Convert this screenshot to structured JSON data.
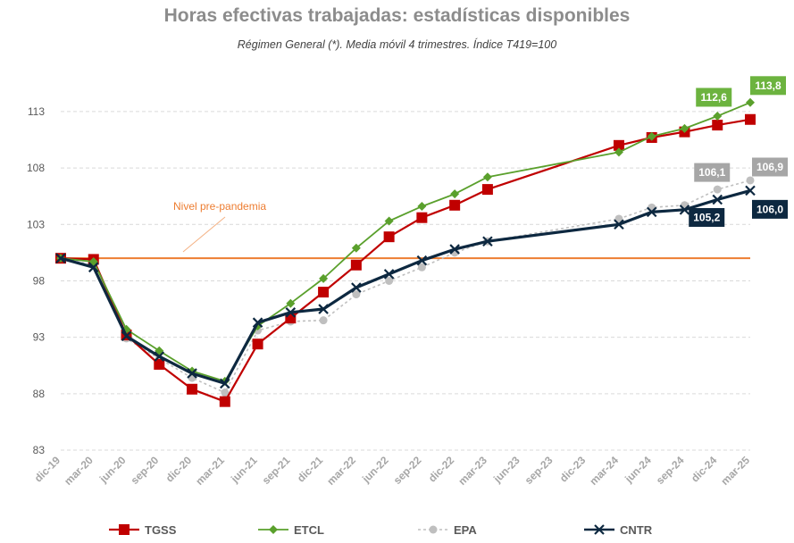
{
  "chart_data": {
    "type": "line",
    "title": "Horas efectivas trabajadas: estadísticas disponibles",
    "subtitle": "Régimen General (*). Media móvil 4 trimestres. Índice T419=100",
    "ylim": [
      83,
      116
    ],
    "yticks": [
      83,
      88,
      93,
      98,
      103,
      108,
      113
    ],
    "grid": "horizontal-dashed",
    "legend_position": "bottom",
    "categories": [
      "dic-19",
      "mar-20",
      "jun-20",
      "sep-20",
      "dic-20",
      "mar-21",
      "jun-21",
      "sep-21",
      "dic-21",
      "mar-22",
      "jun-22",
      "sep-22",
      "dic-22",
      "mar-23",
      "jun-23",
      "sep-23",
      "dic-23",
      "mar-24",
      "jun-24",
      "sep-24",
      "dic-24",
      "mar-25"
    ],
    "series": [
      {
        "name": "TGSS",
        "color": "#c00000",
        "values": [
          100.0,
          99.9,
          93.2,
          90.6,
          88.4,
          87.3,
          92.4,
          94.7,
          97.0,
          99.4,
          101.9,
          103.6,
          104.7,
          106.1,
          null,
          null,
          null,
          110.0,
          110.7,
          111.2,
          111.8,
          112.3
        ]
      },
      {
        "name": "ETCL",
        "color": "#5aa02c",
        "values": [
          100.0,
          99.7,
          93.7,
          91.8,
          90.0,
          89.1,
          94.0,
          96.0,
          98.2,
          100.9,
          103.3,
          104.6,
          105.7,
          107.2,
          null,
          null,
          null,
          109.4,
          110.8,
          111.5,
          112.6,
          113.8
        ]
      },
      {
        "name": "EPA",
        "color": "#bfbfbf",
        "values": [
          100.0,
          99.4,
          92.9,
          91.1,
          89.4,
          88.1,
          93.6,
          94.4,
          94.5,
          96.8,
          98.0,
          99.2,
          100.5,
          101.5,
          null,
          null,
          null,
          103.5,
          104.5,
          104.7,
          106.1,
          106.9
        ]
      },
      {
        "name": "CNTR",
        "color": "#0d2840",
        "values": [
          100.0,
          99.2,
          93.1,
          91.3,
          89.8,
          88.9,
          94.3,
          95.2,
          95.5,
          97.4,
          98.6,
          99.8,
          100.8,
          101.5,
          null,
          null,
          null,
          103.0,
          104.1,
          104.3,
          105.2,
          106.0
        ]
      }
    ],
    "reference_line": {
      "label": "Nivel pre-pandemia",
      "value": 100,
      "color": "#ed7d31"
    },
    "data_labels": [
      {
        "series": "ETCL",
        "category": "dic-24",
        "text": "112,6"
      },
      {
        "series": "ETCL",
        "category": "mar-25",
        "text": "113,8"
      },
      {
        "series": "EPA",
        "category": "dic-24",
        "text": "106,1"
      },
      {
        "series": "EPA",
        "category": "mar-25",
        "text": "106,9"
      },
      {
        "series": "CNTR",
        "category": "dic-24",
        "text": "105,2"
      },
      {
        "series": "CNTR",
        "category": "mar-25",
        "text": "106,0"
      }
    ]
  }
}
